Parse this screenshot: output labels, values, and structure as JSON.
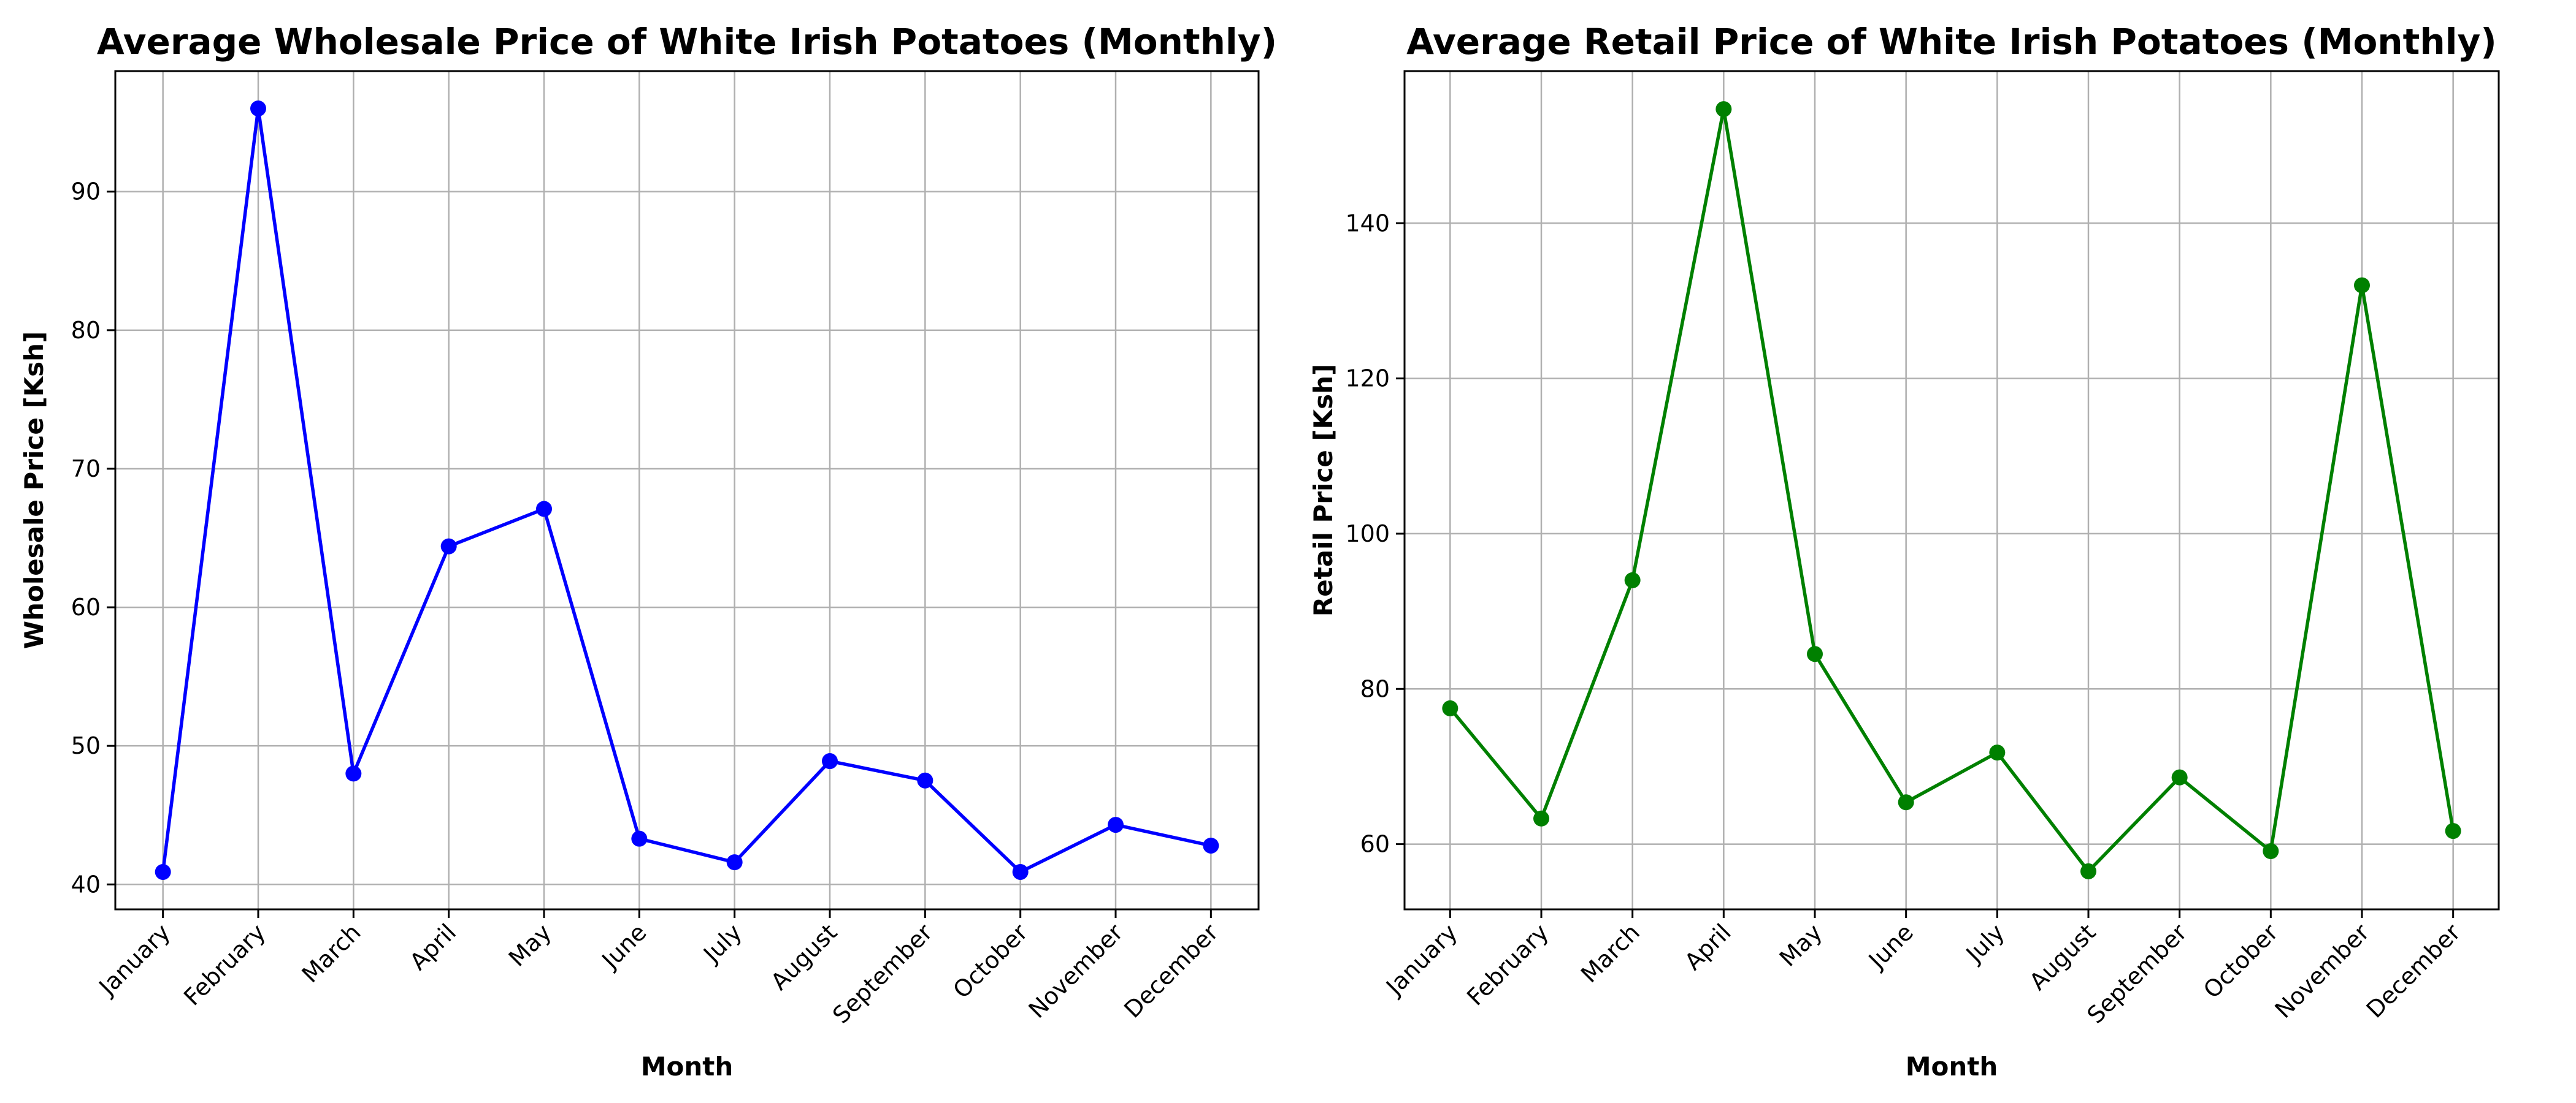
{
  "chart_data": [
    {
      "type": "line",
      "title": "Average Wholesale Price of White Irish Potatoes (Monthly)",
      "xlabel": "Month",
      "ylabel": "Wholesale Price [Ksh]",
      "categories": [
        "January",
        "February",
        "March",
        "April",
        "May",
        "June",
        "July",
        "August",
        "September",
        "October",
        "November",
        "December"
      ],
      "values": [
        40.9,
        96.0,
        48.0,
        64.4,
        67.1,
        43.3,
        41.6,
        48.9,
        47.5,
        40.9,
        44.3,
        42.8
      ],
      "ylim": [
        38.2,
        98.7
      ],
      "yticks": [
        40,
        50,
        60,
        70,
        80,
        90
      ],
      "grid": true,
      "color": "#0000ff",
      "marker": "circle"
    },
    {
      "type": "line",
      "title": "Average Retail Price of White Irish Potatoes (Monthly)",
      "xlabel": "Month",
      "ylabel": "Retail Price [Ksh]",
      "categories": [
        "January",
        "February",
        "March",
        "April",
        "May",
        "June",
        "July",
        "August",
        "September",
        "October",
        "November",
        "December"
      ],
      "values": [
        77.5,
        63.3,
        94.0,
        154.7,
        84.5,
        65.4,
        71.8,
        56.5,
        68.6,
        59.1,
        132.0,
        61.7
      ],
      "ylim": [
        51.6,
        159.6
      ],
      "yticks": [
        60,
        80,
        100,
        120,
        140
      ],
      "grid": true,
      "color": "#008000",
      "marker": "circle"
    }
  ]
}
